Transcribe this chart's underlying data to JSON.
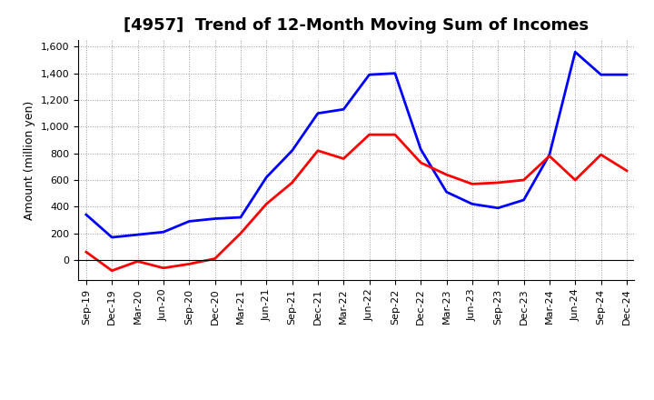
{
  "title": "[4957]  Trend of 12-Month Moving Sum of Incomes",
  "ylabel": "Amount (million yen)",
  "x_labels": [
    "Sep-19",
    "Dec-19",
    "Mar-20",
    "Jun-20",
    "Sep-20",
    "Dec-20",
    "Mar-21",
    "Jun-21",
    "Sep-21",
    "Dec-21",
    "Mar-22",
    "Jun-22",
    "Sep-22",
    "Dec-22",
    "Mar-23",
    "Jun-23",
    "Sep-23",
    "Dec-23",
    "Mar-24",
    "Jun-24",
    "Sep-24",
    "Dec-24"
  ],
  "ordinary_income": [
    340,
    170,
    190,
    210,
    290,
    310,
    320,
    620,
    820,
    1100,
    1130,
    1390,
    1400,
    830,
    510,
    420,
    390,
    450,
    790,
    1560,
    1390,
    1390
  ],
  "net_income": [
    60,
    -80,
    -10,
    -60,
    -30,
    10,
    200,
    420,
    580,
    820,
    760,
    940,
    940,
    730,
    640,
    570,
    580,
    600,
    780,
    600,
    790,
    670
  ],
  "ordinary_color": "#0000FF",
  "net_color": "#FF0000",
  "ylim_min": -150,
  "ylim_max": 1650,
  "yticks": [
    0,
    200,
    400,
    600,
    800,
    1000,
    1200,
    1400,
    1600
  ],
  "background_color": "#FFFFFF",
  "grid_color": "#999999",
  "title_fontsize": 13,
  "axis_fontsize": 9,
  "tick_fontsize": 8,
  "legend_fontsize": 9,
  "line_width": 2.0
}
